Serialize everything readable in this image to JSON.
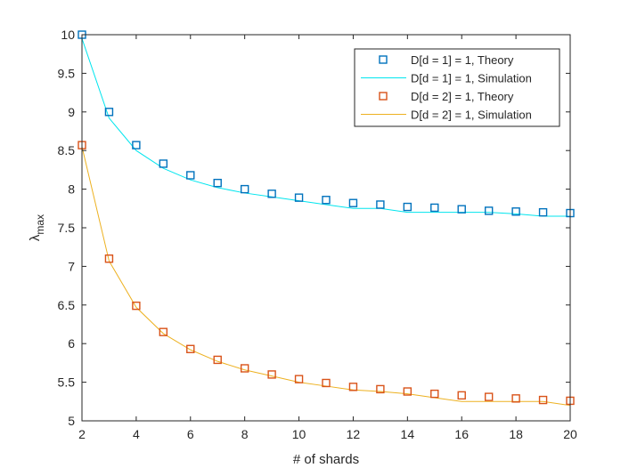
{
  "chart_data": {
    "type": "line",
    "title": "",
    "xlabel": "# of shards",
    "ylabel": "λ",
    "ylabel_subscript": "max",
    "xlim": [
      2,
      20
    ],
    "ylim": [
      5,
      10
    ],
    "xticks": [
      2,
      4,
      6,
      8,
      10,
      12,
      14,
      16,
      18,
      20
    ],
    "yticks": [
      5,
      5.5,
      6,
      6.5,
      7,
      7.5,
      8,
      8.5,
      9,
      9.5,
      10
    ],
    "ytick_labels": [
      "5",
      "5.5",
      "6",
      "6.5",
      "7",
      "7.5",
      "8",
      "8.5",
      "9",
      "9.5",
      "10"
    ],
    "grid": false,
    "legend_position": "top-right",
    "x": [
      2,
      3,
      4,
      5,
      6,
      7,
      8,
      9,
      10,
      11,
      12,
      13,
      14,
      15,
      16,
      17,
      18,
      19,
      20
    ],
    "series": [
      {
        "name": "D[d = 1] = 1, Theory",
        "style": "markers",
        "marker": "square",
        "color": "#0072BD",
        "values": [
          10,
          9.0,
          8.57,
          8.33,
          8.18,
          8.08,
          8.0,
          7.94,
          7.89,
          7.86,
          7.82,
          7.8,
          7.77,
          7.76,
          7.74,
          7.72,
          7.71,
          7.7,
          7.69
        ]
      },
      {
        "name": "D[d = 1] = 1, Simulation",
        "style": "line",
        "color": "#00E5EE",
        "values": [
          9.95,
          8.92,
          8.5,
          8.27,
          8.12,
          8.02,
          7.95,
          7.9,
          7.85,
          7.8,
          7.75,
          7.75,
          7.7,
          7.7,
          7.7,
          7.7,
          7.68,
          7.65,
          7.65
        ]
      },
      {
        "name": "D[d = 2] = 1, Theory",
        "style": "markers",
        "marker": "square",
        "color": "#D95319",
        "values": [
          8.57,
          7.1,
          6.49,
          6.15,
          5.93,
          5.79,
          5.68,
          5.6,
          5.54,
          5.49,
          5.44,
          5.41,
          5.38,
          5.35,
          5.33,
          5.31,
          5.29,
          5.27,
          5.26
        ]
      },
      {
        "name": "D[d = 2] = 1, Simulation",
        "style": "line",
        "color": "#EDB120",
        "values": [
          8.55,
          7.07,
          6.47,
          6.13,
          5.92,
          5.77,
          5.66,
          5.58,
          5.5,
          5.45,
          5.4,
          5.38,
          5.35,
          5.3,
          5.25,
          5.25,
          5.25,
          5.25,
          5.2
        ]
      }
    ]
  }
}
